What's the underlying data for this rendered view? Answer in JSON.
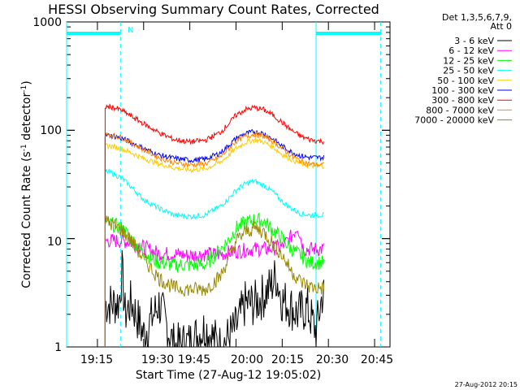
{
  "chart_data": {
    "type": "line",
    "title": "HESSI Observing Summary Count Rates, Corrected",
    "xlabel": "Start Time (27-Aug-12 19:05:02)",
    "ylabel_main": "Corrected Count Rate (s",
    "ylabel_sup1": "-1",
    "ylabel_mid": " detector",
    "ylabel_sup2": "-1",
    "ylabel_end": ")",
    "yscale": "log",
    "ylim": [
      1,
      1000
    ],
    "xlim_min": [
      5,
      50
    ],
    "x_tick_labels": [
      "19:15",
      "19:30",
      "19:45",
      "20:00",
      "20:15",
      "20:30",
      "20:45"
    ],
    "x_tick_minutes": [
      15,
      30,
      45,
      60,
      75,
      90,
      105
    ],
    "y_tick_labels": [
      "1",
      "10",
      "100",
      "1000"
    ],
    "y_tick_values": [
      1,
      10,
      100,
      1000
    ],
    "legend_header": [
      "Det 1,3,5,6,7,9,",
      "Att 0"
    ],
    "flag_label": "N",
    "annotation": "27-Aug-2012 20:15",
    "night_segments_min": [
      [
        5,
        22.5
      ],
      [
        86,
        107
      ]
    ],
    "night_vlines_min": [
      5,
      22.5,
      86,
      107
    ],
    "data_start_min": 17.5,
    "data_end_min": 88.5,
    "series": [
      {
        "name": "3 - 6 keV",
        "color": "#000000",
        "times_min": [
          17.5,
          20,
          22,
          23,
          24,
          26,
          30,
          35,
          40,
          45,
          50,
          55,
          60,
          63,
          66,
          69,
          71,
          73,
          75,
          77,
          80,
          83,
          86,
          88
        ],
        "values": [
          2.5,
          2.5,
          2.6,
          5,
          2,
          2.6,
          1.3,
          2.5,
          1,
          1.1,
          1.5,
          1,
          1.5,
          2.5,
          2.5,
          3,
          3.5,
          4.5,
          2.7,
          2.5,
          2,
          2.3,
          1.4,
          3
        ]
      },
      {
        "name": "6 - 12 keV",
        "color": "#ff00ff",
        "times_min": [
          17.5,
          20,
          25,
          30,
          35,
          40,
          45,
          50,
          55,
          60,
          65,
          70,
          75,
          78,
          80,
          82,
          84,
          86,
          88
        ],
        "values": [
          9.5,
          9.6,
          9.4,
          8.3,
          7.3,
          7.2,
          7,
          7.2,
          7.2,
          7.6,
          8,
          8,
          8.4,
          10.5,
          13,
          8,
          8,
          8,
          8
        ]
      },
      {
        "name": "12 - 25 keV",
        "color": "#00ff00",
        "times_min": [
          17.5,
          20,
          23,
          26,
          30,
          35,
          40,
          45,
          50,
          55,
          58,
          60,
          63,
          66,
          69,
          72,
          75,
          78,
          81,
          84,
          86,
          88
        ],
        "values": [
          14,
          13.5,
          12.5,
          10,
          7.3,
          6,
          5.7,
          5.7,
          5.7,
          8,
          10,
          12.5,
          14,
          15,
          14.5,
          12,
          10,
          8,
          7,
          6,
          6,
          6
        ]
      },
      {
        "name": "25 - 50 keV",
        "color": "#00ffff",
        "times_min": [
          17.5,
          20,
          23,
          26,
          30,
          35,
          40,
          45,
          50,
          55,
          58,
          60,
          63,
          66,
          69,
          72,
          75,
          78,
          81,
          84,
          86,
          88
        ],
        "values": [
          42,
          40,
          36,
          30,
          23,
          19,
          16.5,
          16,
          16.5,
          20,
          24,
          28,
          32,
          34,
          31,
          27,
          22,
          19,
          17,
          16.5,
          16.5,
          16.5
        ]
      },
      {
        "name": "50 - 100 keV",
        "color": "#ffcc00",
        "times_min": [
          17.5,
          20,
          23,
          26,
          30,
          35,
          40,
          45,
          50,
          55,
          58,
          60,
          63,
          66,
          69,
          72,
          75,
          78,
          81,
          84,
          86,
          88
        ],
        "values": [
          72,
          71,
          67,
          62,
          55,
          49,
          45,
          43,
          44,
          51,
          60,
          68,
          77,
          82,
          78,
          70,
          60,
          54,
          49,
          47,
          47,
          47
        ]
      },
      {
        "name": "100 - 300 keV",
        "color": "#0000ff",
        "times_min": [
          17.5,
          20,
          23,
          26,
          30,
          35,
          40,
          45,
          50,
          55,
          58,
          60,
          63,
          66,
          69,
          72,
          75,
          78,
          81,
          84,
          86,
          88
        ],
        "values": [
          90,
          89,
          84,
          77,
          68,
          59,
          55,
          53,
          54,
          62,
          74,
          84,
          93,
          97,
          93,
          83,
          71,
          63,
          58,
          56,
          56,
          56
        ]
      },
      {
        "name": "300 - 800 keV",
        "color": "#ff0000",
        "times_min": [
          17.5,
          20,
          23,
          26,
          30,
          35,
          40,
          45,
          50,
          55,
          58,
          60,
          63,
          66,
          69,
          72,
          75,
          78,
          81,
          84,
          86,
          88
        ],
        "values": [
          165,
          163,
          152,
          135,
          115,
          95,
          82,
          78,
          81,
          96,
          118,
          138,
          155,
          162,
          155,
          138,
          118,
          100,
          88,
          82,
          80,
          79
        ]
      },
      {
        "name": "800 - 7000 keV",
        "color": "#ff8800",
        "times_min": [
          17.5,
          20,
          23,
          26,
          30,
          35,
          40,
          45,
          50,
          55,
          58,
          60,
          63,
          66,
          69,
          72,
          75,
          78,
          81,
          84,
          86,
          88
        ],
        "values": [
          92,
          90,
          85,
          77,
          66,
          56,
          50,
          48,
          49,
          57,
          69,
          79,
          88,
          92,
          88,
          79,
          68,
          58,
          52,
          49,
          48,
          48
        ]
      },
      {
        "name": "7000 - 20000 keV",
        "color": "#998800",
        "times_min": [
          17.5,
          20,
          23,
          26,
          30,
          35,
          40,
          45,
          50,
          55,
          58,
          60,
          63,
          66,
          69,
          72,
          75,
          78,
          81,
          84,
          86,
          88
        ],
        "values": [
          14.5,
          13.5,
          12,
          9.5,
          6.5,
          4.3,
          3.5,
          3.4,
          3.4,
          4.5,
          7,
          9.5,
          11.5,
          12.5,
          11.5,
          9,
          7,
          5,
          4,
          3.6,
          3.5,
          3.5
        ]
      }
    ]
  }
}
